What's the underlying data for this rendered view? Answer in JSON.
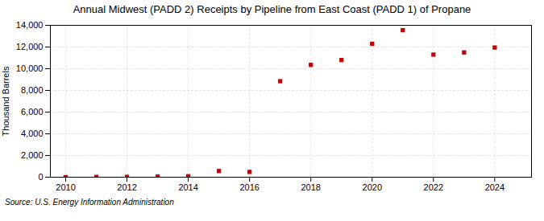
{
  "chart_data": {
    "type": "scatter",
    "title": "Annual Midwest (PADD 2) Receipts by Pipeline from East Coast (PADD 1) of Propane",
    "ylabel": "Thousand Barrels",
    "source": "Source: U.S. Energy Information Administration",
    "x": [
      2010,
      2011,
      2012,
      2013,
      2014,
      2015,
      2016,
      2017,
      2018,
      2019,
      2020,
      2021,
      2022,
      2023,
      2024
    ],
    "values": [
      2,
      20,
      30,
      55,
      90,
      570,
      490,
      8850,
      10350,
      10800,
      12300,
      13550,
      11300,
      11500,
      11950
    ],
    "color": "#cc0000",
    "marker": "square",
    "xlim": [
      2009.5,
      2025.2
    ],
    "xticks": [
      2010,
      2012,
      2014,
      2016,
      2018,
      2020,
      2022,
      2024
    ],
    "ylim": [
      0,
      14000
    ],
    "yticks": [
      0,
      {
        "value": 2000,
        "label": "2,000"
      },
      {
        "value": 4000,
        "label": "4,000"
      },
      {
        "value": 6000,
        "label": "6,000"
      },
      {
        "value": 8000,
        "label": "8,000"
      },
      {
        "value": 10000,
        "label": "10,000"
      },
      {
        "value": 12000,
        "label": "12,000"
      },
      {
        "value": 14000,
        "label": "14,000"
      }
    ],
    "grid": true
  }
}
